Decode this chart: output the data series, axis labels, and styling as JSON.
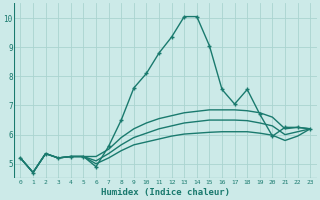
{
  "xlabel": "Humidex (Indice chaleur)",
  "background_color": "#cceae8",
  "grid_color": "#aad4d0",
  "line_color": "#1a7a6e",
  "xlim": [
    -0.5,
    23.5
  ],
  "ylim": [
    4.5,
    10.5
  ],
  "xticks": [
    0,
    1,
    2,
    3,
    4,
    5,
    6,
    7,
    8,
    9,
    10,
    11,
    12,
    13,
    14,
    15,
    16,
    17,
    18,
    19,
    20,
    21,
    22,
    23
  ],
  "yticks": [
    5,
    6,
    7,
    8,
    9,
    10
  ],
  "series": [
    {
      "x": [
        0,
        1,
        2,
        3,
        4,
        5,
        6,
        7,
        8,
        9,
        10,
        11,
        12,
        13,
        14,
        15,
        16,
        17,
        18,
        19,
        20,
        21,
        22,
        23
      ],
      "y": [
        5.2,
        4.7,
        5.35,
        5.2,
        5.25,
        5.25,
        4.9,
        5.6,
        6.5,
        7.6,
        8.1,
        8.8,
        9.35,
        10.05,
        10.05,
        9.05,
        7.55,
        7.05,
        7.55,
        6.7,
        5.95,
        6.25,
        6.25,
        6.2
      ],
      "marker": "+",
      "markersize": 3.5,
      "linewidth": 1.0
    },
    {
      "x": [
        0,
        1,
        2,
        3,
        4,
        5,
        6,
        7,
        8,
        9,
        10,
        11,
        12,
        13,
        14,
        15,
        16,
        17,
        18,
        19,
        20,
        21,
        22,
        23
      ],
      "y": [
        5.2,
        4.7,
        5.35,
        5.2,
        5.25,
        5.25,
        5.25,
        5.5,
        5.9,
        6.2,
        6.4,
        6.55,
        6.65,
        6.75,
        6.8,
        6.85,
        6.85,
        6.85,
        6.82,
        6.75,
        6.6,
        6.2,
        6.25,
        6.2
      ],
      "marker": null,
      "markersize": 0,
      "linewidth": 1.0
    },
    {
      "x": [
        0,
        1,
        2,
        3,
        4,
        5,
        6,
        7,
        8,
        9,
        10,
        11,
        12,
        13,
        14,
        15,
        16,
        17,
        18,
        19,
        20,
        21,
        22,
        23
      ],
      "y": [
        5.2,
        4.7,
        5.35,
        5.2,
        5.25,
        5.25,
        5.1,
        5.35,
        5.65,
        5.9,
        6.05,
        6.2,
        6.3,
        6.4,
        6.45,
        6.5,
        6.5,
        6.5,
        6.48,
        6.4,
        6.3,
        6.0,
        6.1,
        6.2
      ],
      "marker": null,
      "markersize": 0,
      "linewidth": 1.0
    },
    {
      "x": [
        0,
        1,
        2,
        3,
        4,
        5,
        6,
        7,
        8,
        9,
        10,
        11,
        12,
        13,
        14,
        15,
        16,
        17,
        18,
        19,
        20,
        21,
        22,
        23
      ],
      "y": [
        5.2,
        4.7,
        5.35,
        5.2,
        5.25,
        5.25,
        5.0,
        5.2,
        5.45,
        5.65,
        5.75,
        5.85,
        5.95,
        6.02,
        6.05,
        6.08,
        6.1,
        6.1,
        6.1,
        6.05,
        5.98,
        5.8,
        5.95,
        6.2
      ],
      "marker": null,
      "markersize": 0,
      "linewidth": 1.0
    }
  ]
}
